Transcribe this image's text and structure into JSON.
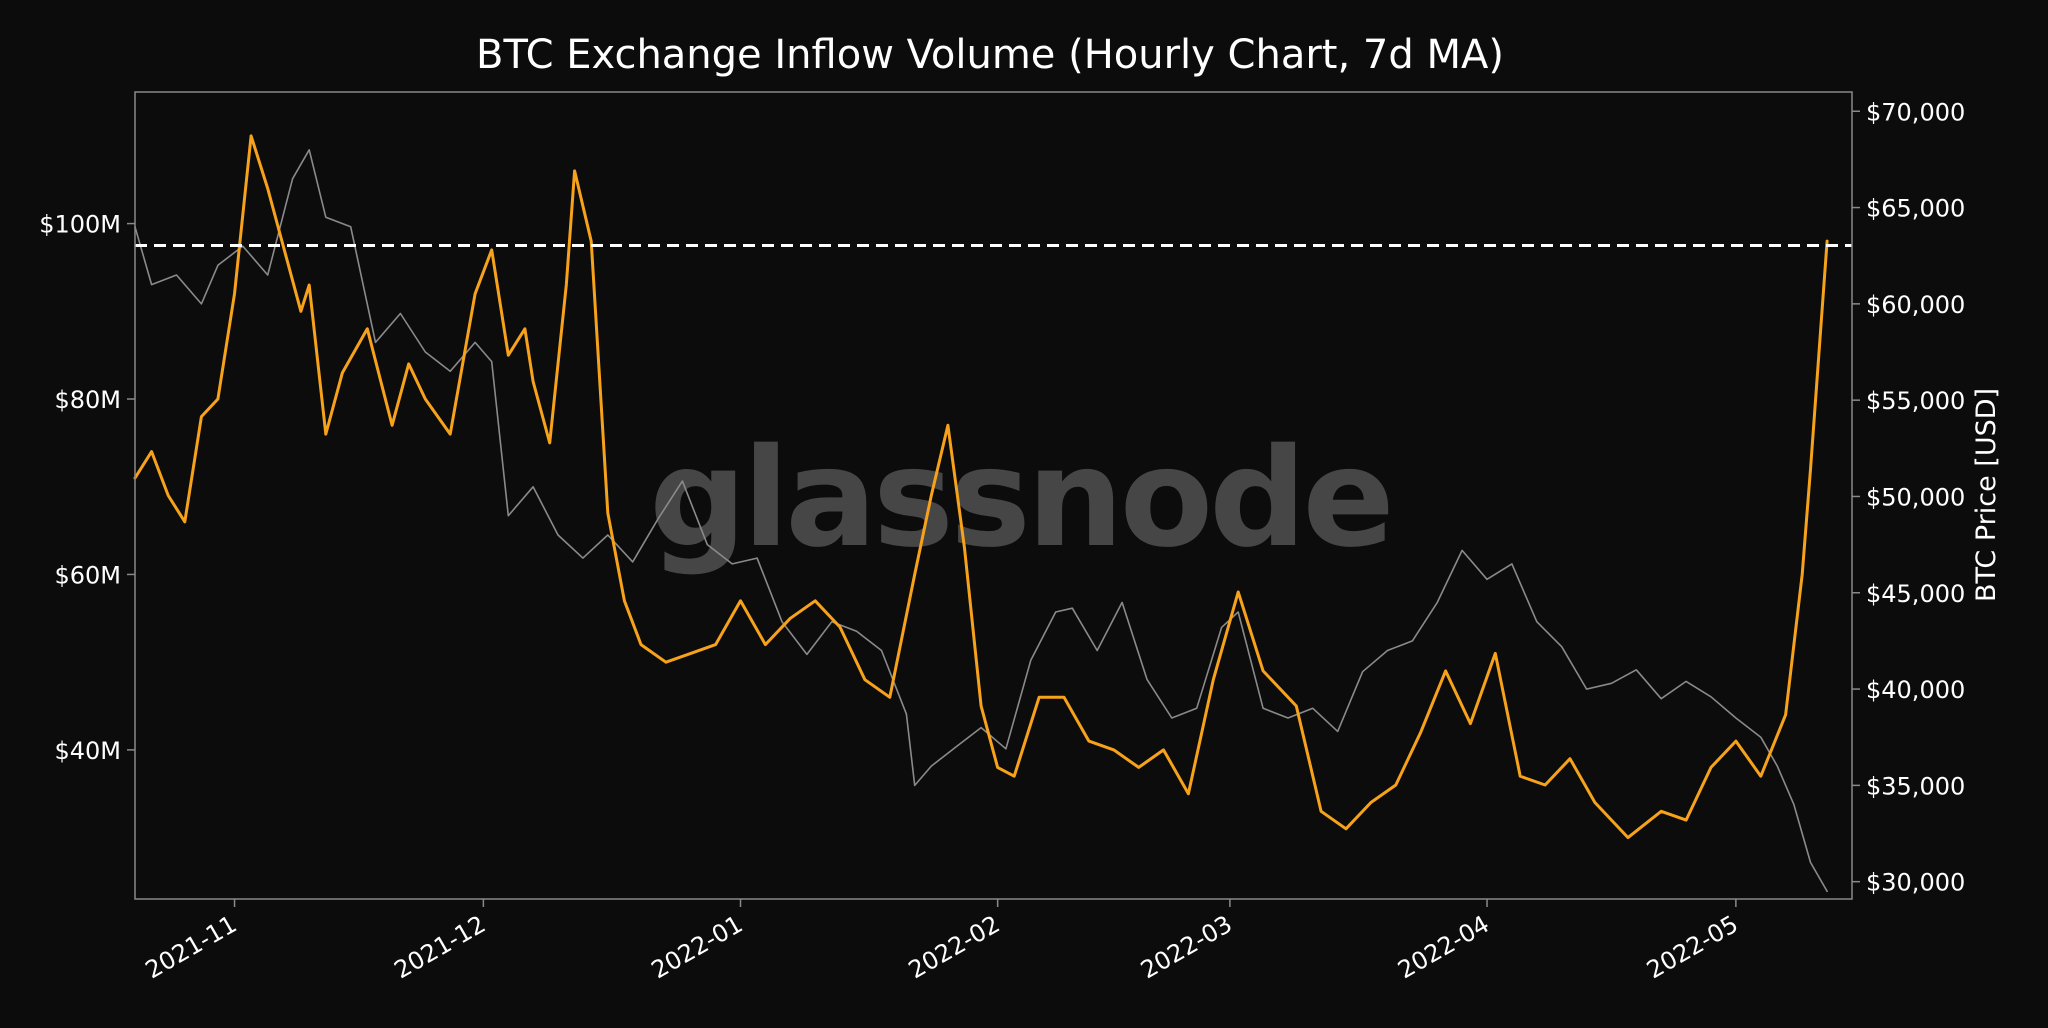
{
  "watermark": "glassnode",
  "colors": {
    "background": "#0c0c0c",
    "inflow": "#f7a21b",
    "price": "#8a8a8a",
    "reference_line": "#ffffff",
    "text": "#ffffff",
    "frame": "#8a8a8a",
    "watermark": "#5a5a5a"
  },
  "chart_data": {
    "type": "line",
    "title": "BTC Exchange Inflow Volume (Hourly Chart, 7d MA)",
    "xlabel": "",
    "ylabel_left": "",
    "ylabel_right": "BTC Price [USD]",
    "x_ticks": [
      "2021-11",
      "2021-12",
      "2022-01",
      "2022-02",
      "2022-03",
      "2022-04",
      "2022-05"
    ],
    "x_range": [
      "2021-10-20",
      "2022-05-15"
    ],
    "y_left_ticks": [
      "$40M",
      "$60M",
      "$80M",
      "$100M"
    ],
    "y_left_tick_values": [
      40,
      60,
      80,
      100
    ],
    "y_left_range": [
      23,
      115
    ],
    "y_right_ticks": [
      "$30,000",
      "$35,000",
      "$40,000",
      "$45,000",
      "$50,000",
      "$55,000",
      "$60,000",
      "$65,000",
      "$70,000"
    ],
    "y_right_tick_values": [
      30000,
      35000,
      40000,
      45000,
      50000,
      55000,
      60000,
      65000,
      70000
    ],
    "y_right_range": [
      29100,
      71000
    ],
    "reference_line": {
      "axis": "left",
      "value": 97.5,
      "style": "dashed"
    },
    "legend": "none",
    "grid": false,
    "series": [
      {
        "role": "inflow_volume_7d_ma",
        "axis": "left",
        "unit": "USD millions",
        "x": [
          "2021-10-20",
          "2021-10-22",
          "2021-10-24",
          "2021-10-26",
          "2021-10-28",
          "2021-10-30",
          "2021-11-01",
          "2021-11-03",
          "2021-11-05",
          "2021-11-07",
          "2021-11-09",
          "2021-11-10",
          "2021-11-12",
          "2021-11-14",
          "2021-11-17",
          "2021-11-20",
          "2021-11-22",
          "2021-11-24",
          "2021-11-27",
          "2021-11-30",
          "2021-12-02",
          "2021-12-04",
          "2021-12-06",
          "2021-12-07",
          "2021-12-09",
          "2021-12-11",
          "2021-12-12",
          "2021-12-14",
          "2021-12-16",
          "2021-12-18",
          "2021-12-20",
          "2021-12-23",
          "2021-12-26",
          "2021-12-29",
          "2022-01-01",
          "2022-01-04",
          "2022-01-07",
          "2022-01-10",
          "2022-01-13",
          "2022-01-16",
          "2022-01-19",
          "2022-01-22",
          "2022-01-24",
          "2022-01-26",
          "2022-01-28",
          "2022-01-30",
          "2022-02-01",
          "2022-02-03",
          "2022-02-06",
          "2022-02-09",
          "2022-02-12",
          "2022-02-15",
          "2022-02-18",
          "2022-02-21",
          "2022-02-24",
          "2022-02-27",
          "2022-03-02",
          "2022-03-05",
          "2022-03-09",
          "2022-03-12",
          "2022-03-15",
          "2022-03-18",
          "2022-03-21",
          "2022-03-24",
          "2022-03-27",
          "2022-03-30",
          "2022-04-02",
          "2022-04-05",
          "2022-04-08",
          "2022-04-11",
          "2022-04-14",
          "2022-04-18",
          "2022-04-22",
          "2022-04-25",
          "2022-04-28",
          "2022-05-01",
          "2022-05-04",
          "2022-05-07",
          "2022-05-09",
          "2022-05-10",
          "2022-05-11",
          "2022-05-12"
        ],
        "values": [
          71,
          74,
          69,
          66,
          78,
          80,
          92,
          110,
          104,
          97,
          90,
          93,
          76,
          83,
          88,
          77,
          84,
          80,
          76,
          92,
          97,
          85,
          88,
          82,
          75,
          93,
          106,
          98,
          67,
          57,
          52,
          50,
          51,
          52,
          57,
          52,
          55,
          57,
          54,
          48,
          46,
          60,
          69,
          77,
          63,
          45,
          38,
          37,
          46,
          46,
          41,
          40,
          38,
          40,
          35,
          48,
          58,
          49,
          45,
          33,
          31,
          34,
          36,
          42,
          49,
          43,
          51,
          37,
          36,
          39,
          34,
          30,
          33,
          32,
          38,
          41,
          37,
          44,
          60,
          72,
          85,
          98
        ]
      },
      {
        "role": "btc_price",
        "axis": "right",
        "unit": "USD",
        "x": [
          "2021-10-20",
          "2021-10-22",
          "2021-10-25",
          "2021-10-28",
          "2021-10-30",
          "2021-11-02",
          "2021-11-05",
          "2021-11-08",
          "2021-11-10",
          "2021-11-12",
          "2021-11-15",
          "2021-11-18",
          "2021-11-21",
          "2021-11-24",
          "2021-11-27",
          "2021-11-30",
          "2021-12-02",
          "2021-12-04",
          "2021-12-07",
          "2021-12-10",
          "2021-12-13",
          "2021-12-16",
          "2021-12-19",
          "2021-12-22",
          "2021-12-25",
          "2021-12-28",
          "2021-12-31",
          "2022-01-03",
          "2022-01-06",
          "2022-01-09",
          "2022-01-12",
          "2022-01-15",
          "2022-01-18",
          "2022-01-21",
          "2022-01-22",
          "2022-01-24",
          "2022-01-27",
          "2022-01-30",
          "2022-02-02",
          "2022-02-05",
          "2022-02-08",
          "2022-02-10",
          "2022-02-13",
          "2022-02-16",
          "2022-02-19",
          "2022-02-22",
          "2022-02-25",
          "2022-02-28",
          "2022-03-02",
          "2022-03-05",
          "2022-03-08",
          "2022-03-11",
          "2022-03-14",
          "2022-03-17",
          "2022-03-20",
          "2022-03-23",
          "2022-03-26",
          "2022-03-29",
          "2022-04-01",
          "2022-04-04",
          "2022-04-07",
          "2022-04-10",
          "2022-04-13",
          "2022-04-16",
          "2022-04-19",
          "2022-04-22",
          "2022-04-25",
          "2022-04-28",
          "2022-05-01",
          "2022-05-04",
          "2022-05-06",
          "2022-05-08",
          "2022-05-10",
          "2022-05-12"
        ],
        "values": [
          64000,
          61000,
          61500,
          60000,
          62000,
          63000,
          61500,
          66500,
          68000,
          64500,
          64000,
          58000,
          59500,
          57500,
          56500,
          58000,
          57000,
          49000,
          50500,
          48000,
          46800,
          48000,
          46600,
          48800,
          50800,
          47500,
          46500,
          46800,
          43500,
          41800,
          43500,
          43000,
          42000,
          38700,
          35000,
          36000,
          37000,
          38000,
          36900,
          41500,
          44000,
          44200,
          42000,
          44500,
          40500,
          38500,
          39000,
          43200,
          44000,
          39000,
          38500,
          39000,
          37800,
          40900,
          42000,
          42500,
          44500,
          47200,
          45700,
          46500,
          43500,
          42200,
          40000,
          40300,
          41000,
          39500,
          40400,
          39600,
          38500,
          37500,
          36000,
          34000,
          31000,
          29500
        ]
      }
    ]
  }
}
